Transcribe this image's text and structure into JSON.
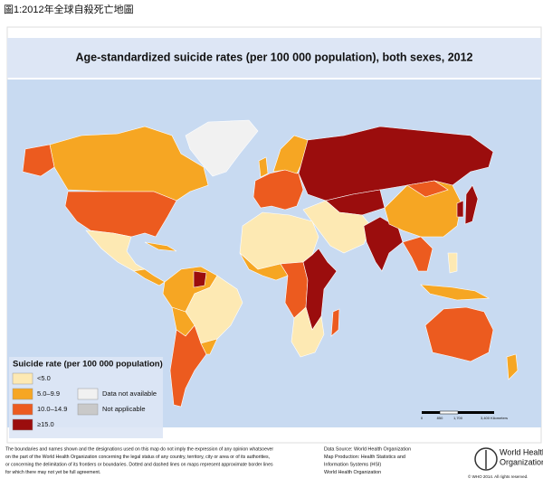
{
  "caption": "圖1:2012年全球自殺死亡地圖",
  "title": "Age-standardized suicide rates (per 100 000 population), both sexes, 2012",
  "legend": {
    "title": "Suicide rate (per 100 000 population)",
    "items": [
      {
        "label": "<5.0",
        "color": "#fde9b3"
      },
      {
        "label": "5.0–9.9",
        "color": "#f6a623"
      },
      {
        "label": "10.0–14.9",
        "color": "#ec5b1f"
      },
      {
        "label": "≥15.0",
        "color": "#9b0d0d"
      },
      {
        "label": "Data not available",
        "color": "#f1f1f1"
      },
      {
        "label": "Not applicable",
        "color": "#c9c9c9"
      }
    ]
  },
  "scale": {
    "labels": [
      "0",
      "850",
      "1,700",
      "3,400 Kilometers"
    ]
  },
  "disclaimer": [
    "The boundaries and names shown and the designations used on this map do not imply the expression of any opinion whatsoever",
    "on the part of the World Health Organization concerning the legal status of any country, territory, city or area or of its authorities,",
    "or concerning the delimitation of its frontiers or boundaries. Dotted and dashed lines on maps represent approximate border lines",
    "for which there may not yet be full agreement."
  ],
  "source": [
    "Data Source: World Health Organization",
    "Map Production: Health Statistics and",
    "Information Systems (HSI)",
    "World Health Organization"
  ],
  "logo": {
    "name": [
      "World Health",
      "Organization"
    ],
    "copyright": "© WHO 2014. All rights reserved."
  }
}
